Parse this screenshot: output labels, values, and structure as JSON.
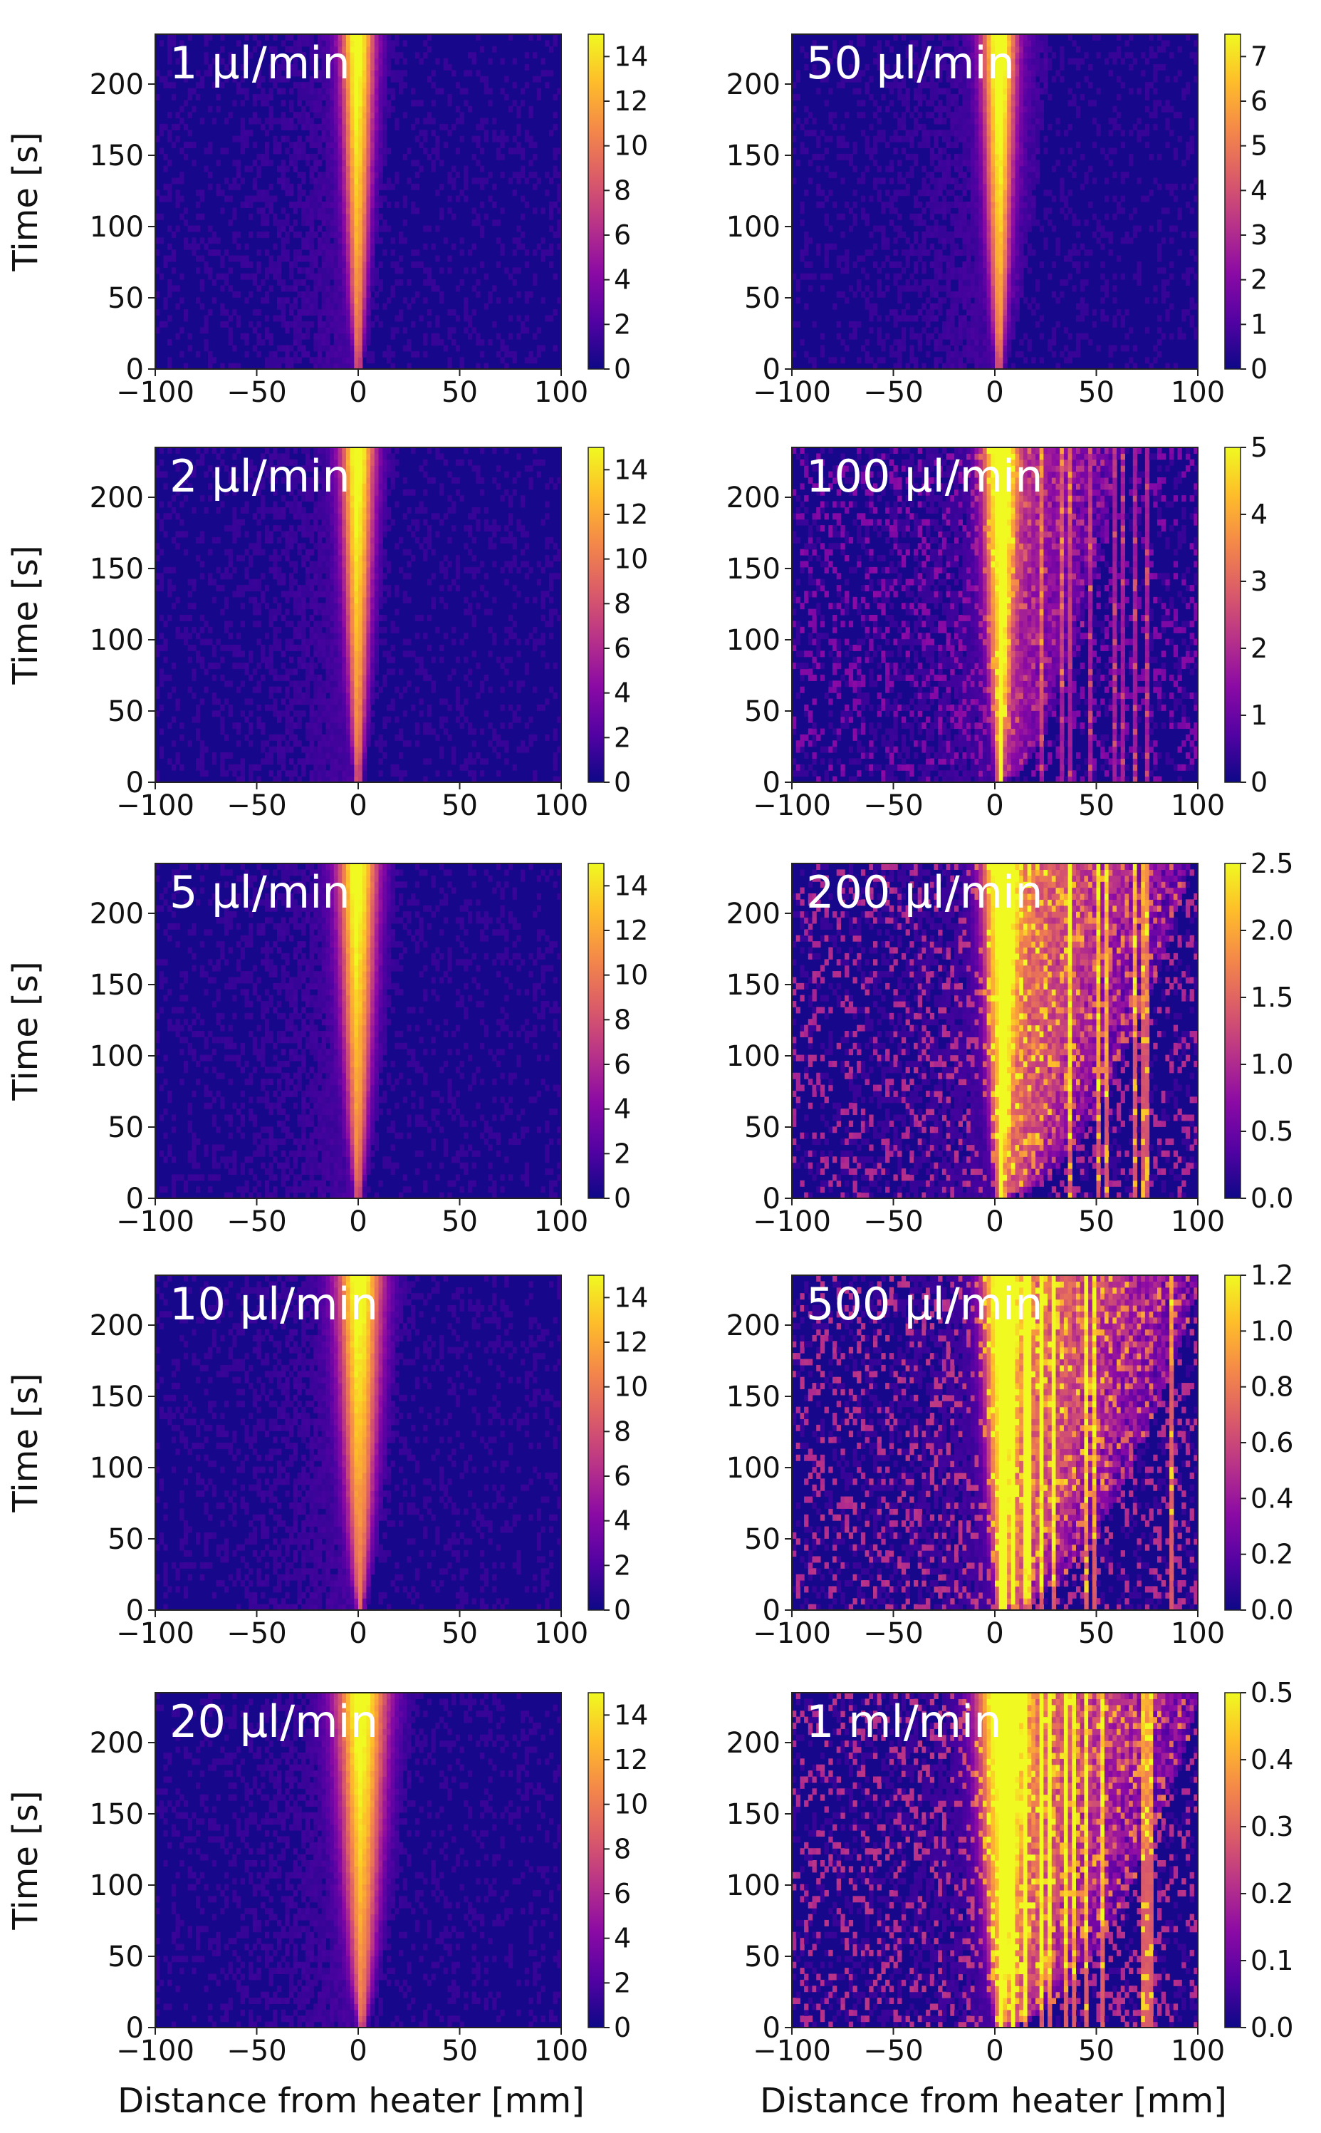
{
  "figure": {
    "x_axis_label": "Distance from heater [mm]",
    "y_axis_label": "Time [s]",
    "colormap": "plasma",
    "colormap_stops": [
      "#0d0887",
      "#5302a3",
      "#8b0aa5",
      "#b83289",
      "#db5c68",
      "#f48849",
      "#febd2a",
      "#f0f921"
    ]
  },
  "chart_data": [
    {
      "type": "heatmap",
      "label": "1 µl/min",
      "column": "left",
      "row": 0,
      "xlim": [
        -100,
        100
      ],
      "ylim": [
        0,
        235
      ],
      "xticks": [
        "−100",
        "−50",
        "0",
        "50",
        "100"
      ],
      "yticks": [
        "0",
        "50",
        "100",
        "150",
        "200"
      ],
      "colorbar_range": [
        0,
        15
      ],
      "colorbar_ticks": [
        "0",
        "2",
        "4",
        "6",
        "8",
        "10",
        "12",
        "14"
      ],
      "xlabel": "",
      "ylabel": "Time [s]",
      "plume_center_mm": 0,
      "plume_half_width_top_mm": 6,
      "plume_front_mm": 6,
      "plume_peak": 15
    },
    {
      "type": "heatmap",
      "label": "2 µl/min",
      "column": "left",
      "row": 1,
      "xlim": [
        -100,
        100
      ],
      "ylim": [
        0,
        235
      ],
      "xticks": [
        "−100",
        "−50",
        "0",
        "50",
        "100"
      ],
      "yticks": [
        "0",
        "50",
        "100",
        "150",
        "200"
      ],
      "colorbar_range": [
        0,
        15
      ],
      "colorbar_ticks": [
        "0",
        "2",
        "4",
        "6",
        "8",
        "10",
        "12",
        "14"
      ],
      "xlabel": "",
      "ylabel": "Time [s]",
      "plume_center_mm": 0,
      "plume_half_width_top_mm": 6,
      "plume_front_mm": 6,
      "plume_peak": 15
    },
    {
      "type": "heatmap",
      "label": "5 µl/min",
      "column": "left",
      "row": 2,
      "xlim": [
        -100,
        100
      ],
      "ylim": [
        0,
        235
      ],
      "xticks": [
        "−100",
        "−50",
        "0",
        "50",
        "100"
      ],
      "yticks": [
        "0",
        "50",
        "100",
        "150",
        "200"
      ],
      "colorbar_range": [
        0,
        15
      ],
      "colorbar_ticks": [
        "0",
        "2",
        "4",
        "6",
        "8",
        "10",
        "12",
        "14"
      ],
      "xlabel": "",
      "ylabel": "Time [s]",
      "plume_center_mm": 0,
      "plume_half_width_top_mm": 7,
      "plume_front_mm": 7,
      "plume_peak": 15
    },
    {
      "type": "heatmap",
      "label": "10 µl/min",
      "column": "left",
      "row": 3,
      "xlim": [
        -100,
        100
      ],
      "ylim": [
        0,
        235
      ],
      "xticks": [
        "−100",
        "−50",
        "0",
        "50",
        "100"
      ],
      "yticks": [
        "0",
        "50",
        "100",
        "150",
        "200"
      ],
      "colorbar_range": [
        0,
        15
      ],
      "colorbar_ticks": [
        "0",
        "2",
        "4",
        "6",
        "8",
        "10",
        "12",
        "14"
      ],
      "xlabel": "",
      "ylabel": "Time [s]",
      "plume_center_mm": 1,
      "plume_half_width_top_mm": 8,
      "plume_front_mm": 8,
      "plume_peak": 14
    },
    {
      "type": "heatmap",
      "label": "20 µl/min",
      "column": "left",
      "row": 4,
      "xlim": [
        -100,
        100
      ],
      "ylim": [
        0,
        235
      ],
      "xticks": [
        "−100",
        "−50",
        "0",
        "50",
        "100"
      ],
      "yticks": [
        "0",
        "50",
        "100",
        "150",
        "200"
      ],
      "colorbar_range": [
        0,
        15
      ],
      "colorbar_ticks": [
        "0",
        "2",
        "4",
        "6",
        "8",
        "10",
        "12",
        "14"
      ],
      "xlabel": "Distance from heater [mm]",
      "ylabel": "Time [s]",
      "plume_center_mm": 2,
      "plume_half_width_top_mm": 9,
      "plume_front_mm": 10,
      "plume_peak": 12
    },
    {
      "type": "heatmap",
      "label": "50 µl/min",
      "column": "right",
      "row": 0,
      "xlim": [
        -100,
        100
      ],
      "ylim": [
        0,
        235
      ],
      "xticks": [
        "−100",
        "−50",
        "0",
        "50",
        "100"
      ],
      "yticks": [
        "0",
        "50",
        "100",
        "150",
        "200"
      ],
      "colorbar_range": [
        0,
        7.5
      ],
      "colorbar_ticks": [
        "0",
        "1",
        "2",
        "3",
        "4",
        "5",
        "6",
        "7"
      ],
      "xlabel": "",
      "ylabel": "",
      "plume_center_mm": 2,
      "plume_half_width_top_mm": 6,
      "plume_front_mm": 25,
      "plume_peak": 7.5
    },
    {
      "type": "heatmap",
      "label": "100 µl/min",
      "column": "right",
      "row": 1,
      "xlim": [
        -100,
        100
      ],
      "ylim": [
        0,
        235
      ],
      "xticks": [
        "−100",
        "−50",
        "0",
        "50",
        "100"
      ],
      "yticks": [
        "0",
        "50",
        "100",
        "150",
        "200"
      ],
      "colorbar_range": [
        0,
        5
      ],
      "colorbar_ticks": [
        "0",
        "1",
        "2",
        "3",
        "4",
        "5"
      ],
      "xlabel": "",
      "ylabel": "",
      "plume_center_mm": 2,
      "plume_half_width_top_mm": 6,
      "plume_front_mm": 60,
      "plume_peak": 5
    },
    {
      "type": "heatmap",
      "label": "200 µl/min",
      "column": "right",
      "row": 2,
      "xlim": [
        -100,
        100
      ],
      "ylim": [
        0,
        235
      ],
      "xticks": [
        "−100",
        "−50",
        "0",
        "50",
        "100"
      ],
      "yticks": [
        "0",
        "50",
        "100",
        "150",
        "200"
      ],
      "colorbar_range": [
        0,
        2.5
      ],
      "colorbar_ticks": [
        "0.0",
        "0.5",
        "1.0",
        "1.5",
        "2.0",
        "2.5"
      ],
      "xlabel": "",
      "ylabel": "",
      "plume_center_mm": 2,
      "plume_half_width_top_mm": 6,
      "plume_front_mm": 95,
      "plume_peak": 2.5
    },
    {
      "type": "heatmap",
      "label": "500 µl/min",
      "column": "right",
      "row": 3,
      "xlim": [
        -100,
        100
      ],
      "ylim": [
        0,
        235
      ],
      "xticks": [
        "−100",
        "−50",
        "0",
        "50",
        "100"
      ],
      "yticks": [
        "0",
        "50",
        "100",
        "150",
        "200"
      ],
      "colorbar_range": [
        0,
        1.2
      ],
      "colorbar_ticks": [
        "0.0",
        "0.2",
        "0.4",
        "0.6",
        "0.8",
        "1.0",
        "1.2"
      ],
      "xlabel": "",
      "ylabel": "",
      "plume_center_mm": 2,
      "plume_half_width_top_mm": 6,
      "plume_front_mm": 100,
      "plume_peak": 1.2
    },
    {
      "type": "heatmap",
      "label": "1 ml/min",
      "column": "right",
      "row": 4,
      "xlim": [
        -100,
        100
      ],
      "ylim": [
        0,
        235
      ],
      "xticks": [
        "−100",
        "−50",
        "0",
        "50",
        "100"
      ],
      "yticks": [
        "0",
        "50",
        "100",
        "150",
        "200"
      ],
      "colorbar_range": [
        0,
        0.5
      ],
      "colorbar_ticks": [
        "0.0",
        "0.1",
        "0.2",
        "0.3",
        "0.4",
        "0.5"
      ],
      "xlabel": "Distance from heater [mm]",
      "ylabel": "",
      "plume_center_mm": 2,
      "plume_half_width_top_mm": 8,
      "plume_front_mm": 100,
      "plume_peak": 0.5
    }
  ]
}
